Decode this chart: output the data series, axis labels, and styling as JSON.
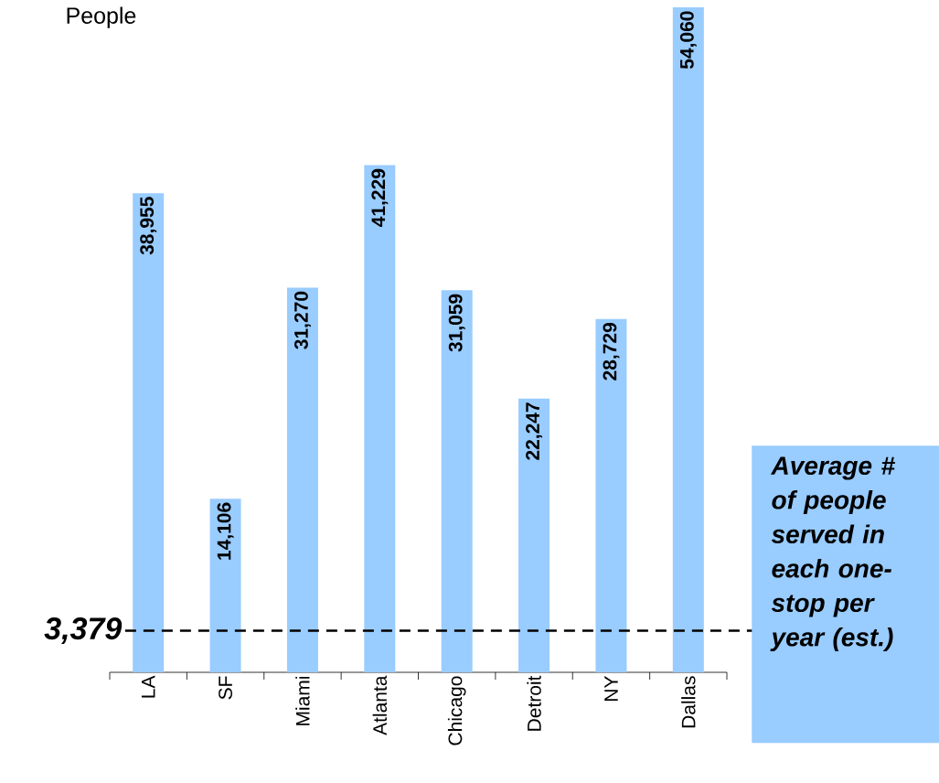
{
  "chart_data": {
    "type": "bar",
    "ylabel": "People",
    "categories": [
      "LA",
      "SF",
      "Miami",
      "Atlanta",
      "Chicago",
      "Detroit",
      "NY",
      "Dallas"
    ],
    "values": [
      38955,
      14106,
      31270,
      41229,
      31059,
      22247,
      28729,
      54060
    ],
    "value_labels": [
      "38,955",
      "14,106",
      "31,270",
      "41,229",
      "31,059",
      "22,247",
      "28,729",
      "54,060"
    ],
    "color": "#99ccff",
    "ylim": [
      0,
      54060
    ],
    "ref_lines": [
      {
        "axis": "y",
        "value": 3379,
        "label": "3,379",
        "line_style": "dashed",
        "color": "#000000"
      }
    ],
    "annotations": [
      "Average # of people served in each one-stop per year (est.)"
    ]
  }
}
